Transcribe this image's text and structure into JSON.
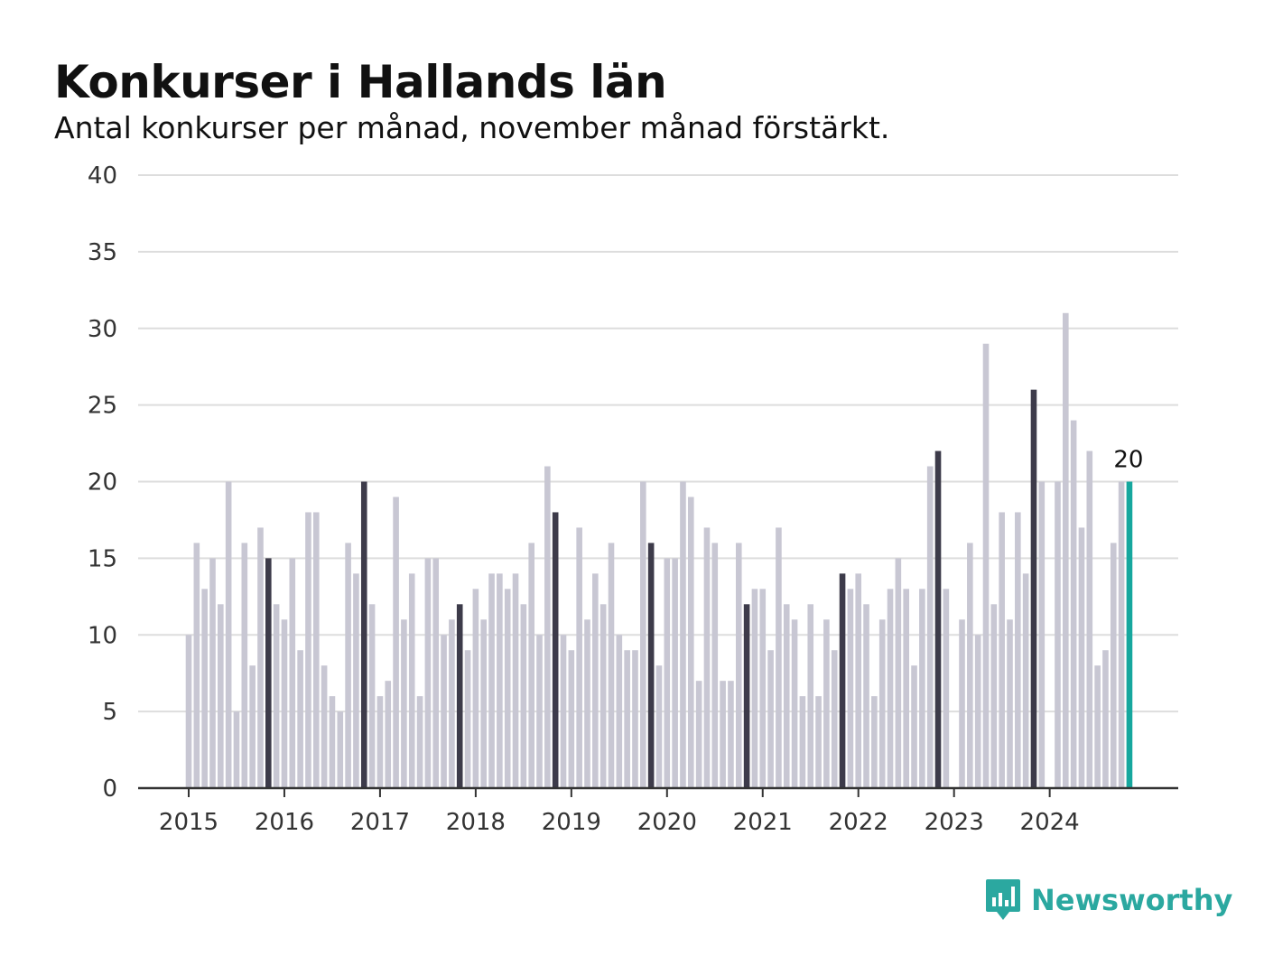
{
  "header": {
    "title": "Konkurser i Hallands län",
    "subtitle": "Antal konkurser per månad, november månad förstärkt."
  },
  "brand": {
    "name": "Newsworthy",
    "icon": "bar-chart-speech-bubble-icon"
  },
  "colors": {
    "regular_bar": "#c8c7d3",
    "november_bar": "#3d3b4a",
    "latest_bar": "#16a79e",
    "gridline": "#dddddd",
    "axis": "#333333",
    "brand": "#2ba8a0"
  },
  "chart_data": {
    "type": "bar",
    "title": "Konkurser i Hallands län",
    "subtitle": "Antal konkurser per månad, november månad förstärkt.",
    "xlabel": "",
    "ylabel": "",
    "ylim": [
      0,
      40
    ],
    "yticks": [
      0,
      5,
      10,
      15,
      20,
      25,
      30,
      35,
      40
    ],
    "xticks": [
      "2015",
      "2016",
      "2017",
      "2018",
      "2019",
      "2020",
      "2021",
      "2022",
      "2023",
      "2024"
    ],
    "start_month": "2015-01",
    "end_month": "2024-11",
    "highlighted_month": "november",
    "grid": true,
    "legend": "none",
    "latest_value_label": "20",
    "values": [
      10,
      16,
      13,
      15,
      12,
      20,
      5,
      16,
      8,
      17,
      15,
      12,
      11,
      15,
      9,
      18,
      18,
      8,
      6,
      5,
      16,
      14,
      20,
      12,
      6,
      7,
      19,
      11,
      14,
      6,
      15,
      15,
      10,
      11,
      12,
      9,
      13,
      11,
      14,
      14,
      13,
      14,
      12,
      16,
      10,
      21,
      18,
      10,
      9,
      17,
      11,
      14,
      12,
      16,
      10,
      9,
      9,
      20,
      16,
      8,
      15,
      15,
      20,
      19,
      7,
      17,
      16,
      7,
      7,
      16,
      12,
      13,
      13,
      9,
      17,
      12,
      11,
      6,
      12,
      6,
      11,
      9,
      14,
      13,
      14,
      12,
      6,
      11,
      13,
      15,
      13,
      8,
      13,
      21,
      22,
      13,
      0,
      11,
      16,
      10,
      29,
      12,
      18,
      11,
      18,
      14,
      26,
      20,
      0,
      20,
      31,
      24,
      17,
      22,
      8,
      9,
      16,
      20,
      20
    ]
  }
}
